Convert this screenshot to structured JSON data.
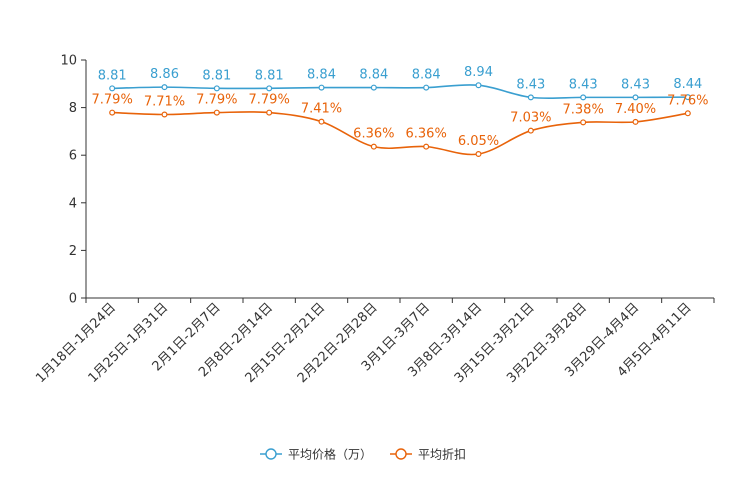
{
  "chart_data": {
    "type": "line",
    "title": "",
    "xlabel": "",
    "ylabel": "",
    "ylim": [
      0,
      10
    ],
    "yticks": [
      0,
      2,
      4,
      6,
      8,
      10
    ],
    "categories": [
      "1月18日-1月24日",
      "1月25日-1月31日",
      "2月1日-2月7日",
      "2月8日-2月14日",
      "2月15日-2月21日",
      "2月22日-2月28日",
      "3月1日-3月7日",
      "3月8日-3月14日",
      "3月15日-3月21日",
      "3月22日-3月28日",
      "3月29日-4月4日",
      "4月5日-4月11日"
    ],
    "series": [
      {
        "name": "平均价格（万）",
        "color": "#3a9fd0",
        "values": [
          8.81,
          8.86,
          8.81,
          8.81,
          8.84,
          8.84,
          8.84,
          8.94,
          8.43,
          8.43,
          8.43,
          8.44
        ],
        "labels": [
          "8.81",
          "8.86",
          "8.81",
          "8.81",
          "8.84",
          "8.84",
          "8.84",
          "8.94",
          "8.43",
          "8.43",
          "8.43",
          "8.44"
        ]
      },
      {
        "name": "平均折扣",
        "color": "#e8630a",
        "values": [
          7.79,
          7.71,
          7.79,
          7.79,
          7.41,
          6.36,
          6.36,
          6.05,
          7.03,
          7.38,
          7.4,
          7.76
        ],
        "labels": [
          "7.79%",
          "7.71%",
          "7.79%",
          "7.79%",
          "7.41%",
          "6.36%",
          "6.36%",
          "6.05%",
          "7.03%",
          "7.38%",
          "7.40%",
          "7.76%"
        ]
      }
    ],
    "legend_position": "bottom"
  }
}
